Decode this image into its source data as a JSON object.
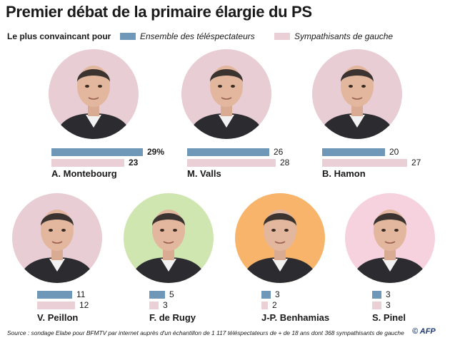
{
  "title": "Premier débat de la primaire élargie du PS",
  "legend": {
    "lead": "Le plus convaincant pour",
    "series": [
      {
        "name": "Ensemble des téléspectateurs",
        "color": "#6f98b8"
      },
      {
        "name": "Sympathisants de gauche",
        "color": "#ebcfd7"
      }
    ]
  },
  "chart_data": {
    "type": "bar",
    "categories": [
      "A. Montebourg",
      "M. Valls",
      "B. Hamon",
      "V. Peillon",
      "F. de Rugy",
      "J-P. Benhamias",
      "S. Pinel"
    ],
    "series": [
      {
        "name": "Ensemble des téléspectateurs",
        "values": [
          29,
          26,
          20,
          11,
          5,
          3,
          3
        ],
        "labels": [
          "29%",
          "26",
          "20",
          "11",
          "5",
          "3",
          "3"
        ]
      },
      {
        "name": "Sympathisants de gauche",
        "values": [
          23,
          28,
          27,
          12,
          3,
          2,
          3
        ],
        "labels": [
          "23",
          "28",
          "27",
          "12",
          "3",
          "2",
          "3"
        ]
      }
    ],
    "unit": "%"
  },
  "portrait_colors": [
    "#e8cdd4",
    "#e8cdd4",
    "#e8cdd4",
    "#e8cdd4",
    "#cfe6b0",
    "#f7b46a",
    "#f6d2df"
  ],
  "source": "Source : sondage Elabe pour BFMTV par internet auprès d'un échantillon de 1 117 téléspectateurs de + de 18 ans  dont 368 sympathisants de gauche",
  "credit": "© AFP"
}
